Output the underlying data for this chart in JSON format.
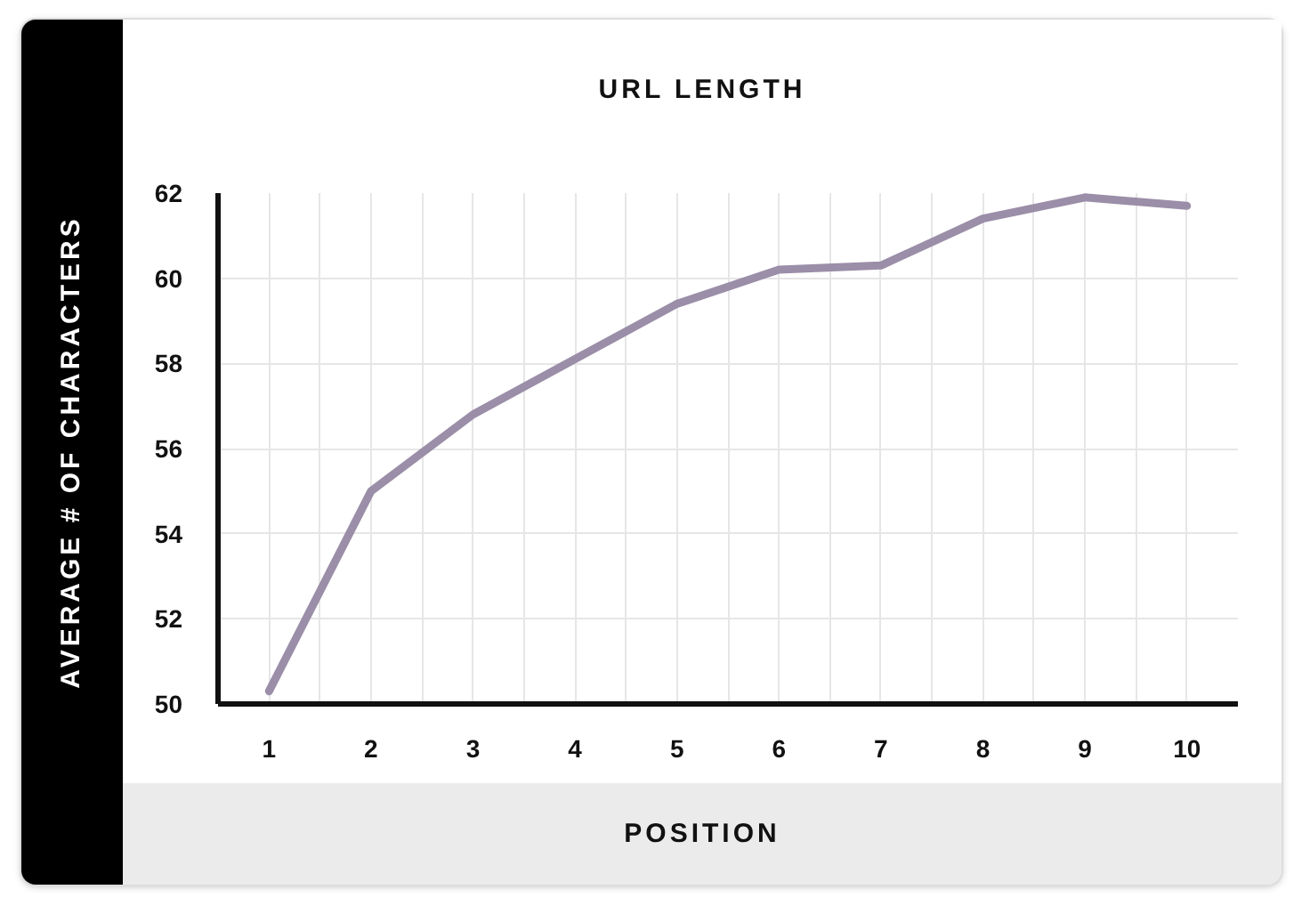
{
  "chart_data": {
    "type": "line",
    "title": "URL LENGTH",
    "xlabel": "POSITION",
    "ylabel": "AVERAGE # OF CHARACTERS",
    "x": [
      1,
      2,
      3,
      4,
      5,
      6,
      7,
      8,
      9,
      10
    ],
    "series": [
      {
        "color": "#9b8ea8",
        "values": [
          50.3,
          55.0,
          56.8,
          58.1,
          59.4,
          60.2,
          60.3,
          61.4,
          61.9,
          61.7
        ]
      }
    ],
    "xlim": [
      0.5,
      10.5
    ],
    "xticks": [
      1,
      2,
      3,
      4,
      5,
      6,
      7,
      8,
      9,
      10
    ],
    "ylim": [
      50,
      62
    ],
    "yticks": [
      50,
      52,
      54,
      56,
      58,
      60,
      62
    ],
    "grid": true,
    "marker": "none",
    "line_style": "solid"
  }
}
